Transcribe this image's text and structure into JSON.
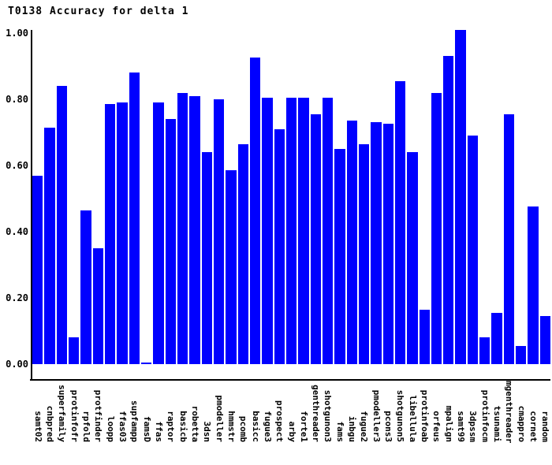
{
  "title": "T0138 Accuracy for delta 1",
  "colors": {
    "bar": "#0000ff",
    "axis": "#000000",
    "text": "#000000",
    "background": "#ffffff"
  },
  "y_axis": {
    "ticks": [
      "1.00",
      "0.80",
      "0.60",
      "0.40",
      "0.20",
      "0.00"
    ]
  },
  "chart_data": {
    "type": "bar",
    "title": "T0138 Accuracy for delta 1",
    "xlabel": "",
    "ylabel": "",
    "ylim": [
      0.0,
      1.0
    ],
    "y_tick_step": 0.2,
    "grid": false,
    "legend": false,
    "bar_color": "#0000ff",
    "categories": [
      "samt02",
      "cnbpred",
      "superfamily",
      "protinfofr",
      "rpfold",
      "protfinder",
      "loopp",
      "ffas03",
      "supfampp",
      "famsD",
      "ffas",
      "raptor",
      "basicb",
      "robetta",
      "3dsn",
      "pmodeller",
      "hmmstr",
      "pcomb",
      "basicc",
      "fugue3",
      "prospect",
      "arby",
      "forte1",
      "genthreader",
      "shotgunon3",
      "fams",
      "inbgu",
      "fugue2",
      "pmodeller3",
      "pcons3",
      "shotgunon5",
      "libellula",
      "protinfoab",
      "orfeus",
      "mpalign",
      "samt99",
      "3dpssm",
      "protinfocm",
      "tsunami",
      "mgenthreader",
      "cmappro",
      "cornet",
      "random"
    ],
    "values": [
      0.57,
      0.715,
      0.84,
      0.08,
      0.465,
      0.35,
      0.785,
      0.79,
      0.88,
      0.005,
      0.79,
      0.74,
      0.82,
      0.81,
      0.64,
      0.8,
      0.585,
      0.665,
      0.925,
      0.805,
      0.71,
      0.805,
      0.805,
      0.755,
      0.805,
      0.65,
      0.735,
      0.665,
      0.73,
      0.725,
      0.855,
      0.64,
      0.165,
      0.82,
      0.93,
      1.01,
      0.69,
      0.08,
      0.155,
      0.755,
      0.055,
      0.475,
      0.145
    ]
  }
}
